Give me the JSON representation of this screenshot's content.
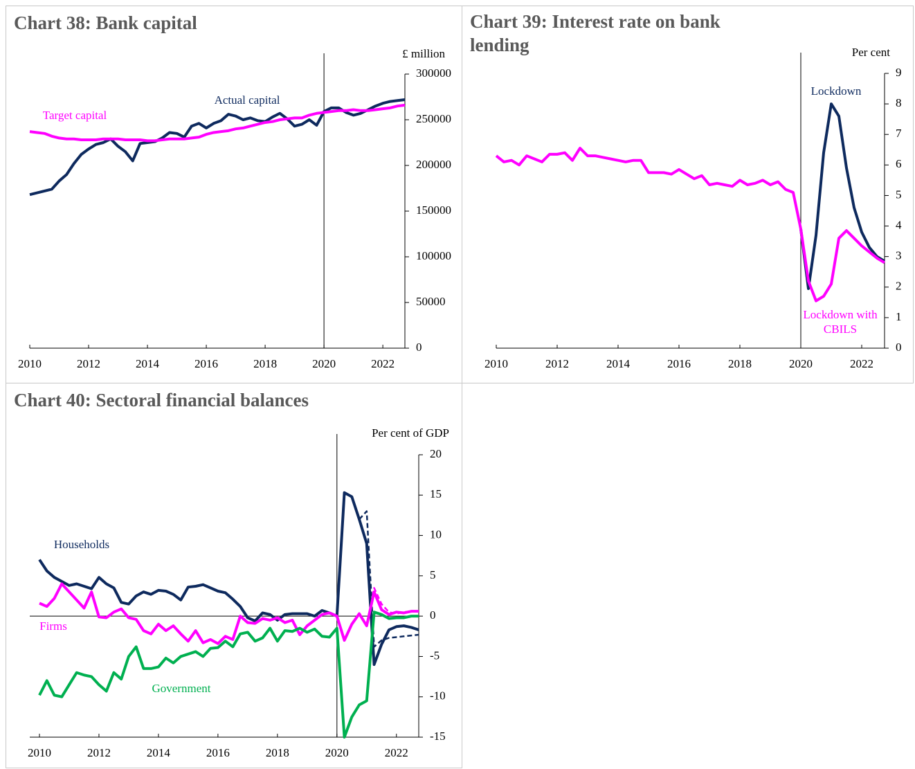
{
  "chart_data": [
    {
      "type": "line",
      "title": "Chart 38:  Bank capital",
      "y_label": "£ million",
      "x": [
        2010,
        2010.25,
        2010.5,
        2010.75,
        2011,
        2011.25,
        2011.5,
        2011.75,
        2012,
        2012.25,
        2012.5,
        2012.75,
        2013,
        2013.25,
        2013.5,
        2013.75,
        2014,
        2014.25,
        2014.5,
        2014.75,
        2015,
        2015.25,
        2015.5,
        2015.75,
        2016,
        2016.25,
        2016.5,
        2016.75,
        2017,
        2017.25,
        2017.5,
        2017.75,
        2018,
        2018.25,
        2018.5,
        2018.75,
        2019,
        2019.25,
        2019.5,
        2019.75,
        2020,
        2020.25,
        2020.5,
        2020.75,
        2021,
        2021.25,
        2021.5,
        2021.75,
        2022,
        2022.25,
        2022.5,
        2022.75
      ],
      "xlim": [
        2010,
        2022.75
      ],
      "xticks": [
        2010,
        2012,
        2014,
        2016,
        2018,
        2020,
        2022
      ],
      "ylim": [
        0,
        300000
      ],
      "yticks": [
        0,
        50000,
        100000,
        150000,
        200000,
        250000,
        300000
      ],
      "vline": 2020,
      "series": [
        {
          "name": "Actual capital",
          "color": "#0e2a5e",
          "values": [
            168000,
            170000,
            172000,
            174000,
            183000,
            190000,
            202000,
            212000,
            218000,
            223000,
            225000,
            229000,
            221000,
            215000,
            205000,
            224000,
            225000,
            226000,
            230000,
            236000,
            235000,
            231000,
            243000,
            246000,
            241000,
            246000,
            249000,
            256000,
            254000,
            250000,
            252000,
            249000,
            248000,
            253000,
            257000,
            251000,
            243000,
            245000,
            250000,
            244000,
            259000,
            263000,
            263000,
            258000,
            255000,
            257000,
            261000,
            265000,
            268000,
            270000,
            271000,
            272000
          ]
        },
        {
          "name": "Target capital",
          "color": "#ff00ff",
          "values": [
            237000,
            236000,
            235000,
            232000,
            230000,
            229000,
            229000,
            228000,
            228000,
            228000,
            229000,
            229000,
            229000,
            228000,
            228000,
            228000,
            227000,
            227000,
            228000,
            229000,
            229000,
            229000,
            230000,
            231000,
            234000,
            236000,
            237000,
            238000,
            240000,
            241000,
            243000,
            245000,
            247000,
            248000,
            250000,
            251000,
            252000,
            252000,
            255000,
            257000,
            258000,
            259000,
            260000,
            260000,
            261000,
            260000,
            260000,
            261000,
            262000,
            263000,
            265000,
            266000
          ]
        }
      ]
    },
    {
      "type": "line",
      "title": "Chart 39:  Interest rate on bank lending",
      "y_label": "Per cent",
      "x": [
        2010,
        2010.25,
        2010.5,
        2010.75,
        2011,
        2011.25,
        2011.5,
        2011.75,
        2012,
        2012.25,
        2012.5,
        2012.75,
        2013,
        2013.25,
        2013.5,
        2013.75,
        2014,
        2014.25,
        2014.5,
        2014.75,
        2015,
        2015.25,
        2015.5,
        2015.75,
        2016,
        2016.25,
        2016.5,
        2016.75,
        2017,
        2017.25,
        2017.5,
        2017.75,
        2018,
        2018.25,
        2018.5,
        2018.75,
        2019,
        2019.25,
        2019.5,
        2019.75,
        2020,
        2020.25,
        2020.5,
        2020.75,
        2021,
        2021.25,
        2021.5,
        2021.75,
        2022,
        2022.25,
        2022.5,
        2022.75
      ],
      "xlim": [
        2010,
        2022.75
      ],
      "xticks": [
        2010,
        2012,
        2014,
        2016,
        2018,
        2020,
        2022
      ],
      "ylim": [
        0,
        9
      ],
      "yticks": [
        0,
        1,
        2,
        3,
        4,
        5,
        6,
        7,
        8,
        9
      ],
      "vline": 2020,
      "series": [
        {
          "name": "Lockdown",
          "color": "#0e2a5e",
          "values": [
            null,
            null,
            null,
            null,
            null,
            null,
            null,
            null,
            null,
            null,
            null,
            null,
            null,
            null,
            null,
            null,
            null,
            null,
            null,
            null,
            null,
            null,
            null,
            null,
            null,
            null,
            null,
            null,
            null,
            null,
            null,
            null,
            null,
            null,
            null,
            null,
            null,
            null,
            null,
            null,
            3.9,
            1.95,
            3.7,
            6.4,
            8.0,
            7.6,
            5.9,
            4.6,
            3.8,
            3.3,
            3.0,
            2.85
          ]
        },
        {
          "name": "Lockdown with CBILS",
          "color": "#ff00ff",
          "values": [
            6.3,
            6.1,
            6.15,
            6.0,
            6.3,
            6.2,
            6.1,
            6.35,
            6.35,
            6.4,
            6.15,
            6.55,
            6.3,
            6.3,
            6.25,
            6.2,
            6.15,
            6.1,
            6.15,
            6.15,
            5.75,
            5.75,
            5.75,
            5.7,
            5.85,
            5.7,
            5.55,
            5.65,
            5.35,
            5.4,
            5.35,
            5.3,
            5.5,
            5.35,
            5.4,
            5.5,
            5.35,
            5.45,
            5.2,
            5.1,
            3.9,
            2.2,
            1.55,
            1.7,
            2.1,
            3.6,
            3.85,
            3.6,
            3.35,
            3.15,
            2.95,
            2.8
          ]
        }
      ]
    },
    {
      "type": "line",
      "title": "Chart 40:  Sectoral financial balances",
      "y_label": "Per cent of GDP",
      "x": [
        2010,
        2010.25,
        2010.5,
        2010.75,
        2011,
        2011.25,
        2011.5,
        2011.75,
        2012,
        2012.25,
        2012.5,
        2012.75,
        2013,
        2013.25,
        2013.5,
        2013.75,
        2014,
        2014.25,
        2014.5,
        2014.75,
        2015,
        2015.25,
        2015.5,
        2015.75,
        2016,
        2016.25,
        2016.5,
        2016.75,
        2017,
        2017.25,
        2017.5,
        2017.75,
        2018,
        2018.25,
        2018.5,
        2018.75,
        2019,
        2019.25,
        2019.5,
        2019.75,
        2020,
        2020.25,
        2020.5,
        2020.75,
        2021,
        2021.25,
        2021.5,
        2021.75,
        2022,
        2022.25,
        2022.5,
        2022.75
      ],
      "xlim": [
        2010,
        2022.75
      ],
      "xticks": [
        2010,
        2012,
        2014,
        2016,
        2018,
        2020,
        2022
      ],
      "ylim": [
        -15,
        20
      ],
      "yticks": [
        -15,
        -10,
        -5,
        0,
        5,
        10,
        15,
        20
      ],
      "vline": 2020,
      "hline": 0,
      "series": [
        {
          "name": "Households",
          "color": "#0e2a5e",
          "values": [
            7.0,
            5.6,
            4.8,
            4.3,
            3.8,
            4.0,
            3.7,
            3.4,
            4.8,
            4.0,
            3.5,
            1.7,
            1.5,
            2.5,
            3.0,
            2.7,
            3.2,
            3.1,
            2.7,
            2.0,
            3.6,
            3.7,
            3.9,
            3.5,
            3.1,
            2.9,
            2.1,
            1.2,
            -0.2,
            -0.6,
            0.4,
            0.2,
            -0.5,
            0.2,
            0.3,
            0.3,
            0.3,
            0.0,
            0.7,
            0.4,
            0.0,
            15.3,
            14.8,
            12.0,
            9.0,
            -6.0,
            -3.5,
            -1.7,
            -1.3,
            -1.2,
            -1.4,
            -1.7
          ]
        },
        {
          "name": "Firms",
          "color": "#ff00ff",
          "values": [
            1.6,
            1.2,
            2.2,
            4.0,
            3.0,
            2.0,
            1.0,
            3.0,
            -0.1,
            -0.2,
            0.5,
            0.9,
            -0.2,
            -0.4,
            -1.8,
            -2.2,
            -1.0,
            -1.8,
            -1.2,
            -2.2,
            -3.1,
            -1.8,
            -3.3,
            -2.9,
            -3.4,
            -2.5,
            -2.9,
            0.0,
            -0.8,
            -0.9,
            -0.3,
            -0.5,
            -0.2,
            -0.8,
            -0.5,
            -2.3,
            -1.2,
            -0.5,
            0.2,
            0.4,
            0.0,
            -3.0,
            -1.0,
            0.3,
            -1.2,
            3.0,
            0.8,
            0.2,
            0.5,
            0.4,
            0.6,
            0.6
          ]
        },
        {
          "name": "Government",
          "color": "#00b050",
          "values": [
            -9.8,
            -8.0,
            -9.8,
            -10.0,
            -8.5,
            -7.0,
            -7.3,
            -7.5,
            -8.5,
            -9.3,
            -7.0,
            -7.8,
            -5.0,
            -3.8,
            -6.5,
            -6.5,
            -6.3,
            -5.2,
            -5.8,
            -5.0,
            -4.7,
            -4.4,
            -5.0,
            -4.0,
            -3.9,
            -3.1,
            -3.8,
            -2.2,
            -2.0,
            -3.1,
            -2.7,
            -1.5,
            -3.1,
            -1.8,
            -1.9,
            -1.5,
            -2.0,
            -1.6,
            -2.5,
            -2.6,
            -1.5,
            -15.0,
            -12.5,
            -11.0,
            -10.5,
            0.5,
            0.2,
            -0.3,
            -0.2,
            -0.2,
            0.0,
            0.0
          ]
        },
        {
          "color": "#0e2a5e",
          "dash": true,
          "values": [
            null,
            null,
            null,
            null,
            null,
            null,
            null,
            null,
            null,
            null,
            null,
            null,
            null,
            null,
            null,
            null,
            null,
            null,
            null,
            null,
            null,
            null,
            null,
            null,
            null,
            null,
            null,
            null,
            null,
            null,
            null,
            null,
            null,
            null,
            null,
            null,
            null,
            null,
            null,
            null,
            null,
            null,
            null,
            12.0,
            13.0,
            -3.8,
            -3.0,
            -2.7,
            -2.6,
            -2.5,
            -2.4,
            -2.3
          ]
        },
        {
          "color": "#ff00ff",
          "dash": true,
          "values": [
            null,
            null,
            null,
            null,
            null,
            null,
            null,
            null,
            null,
            null,
            null,
            null,
            null,
            null,
            null,
            null,
            null,
            null,
            null,
            null,
            null,
            null,
            null,
            null,
            null,
            null,
            null,
            null,
            null,
            null,
            null,
            null,
            null,
            null,
            null,
            null,
            null,
            null,
            null,
            null,
            null,
            null,
            null,
            null,
            -1.2,
            3.5,
            1.5,
            0.5,
            0.3,
            0.5,
            0.6,
            0.6
          ]
        }
      ]
    }
  ]
}
